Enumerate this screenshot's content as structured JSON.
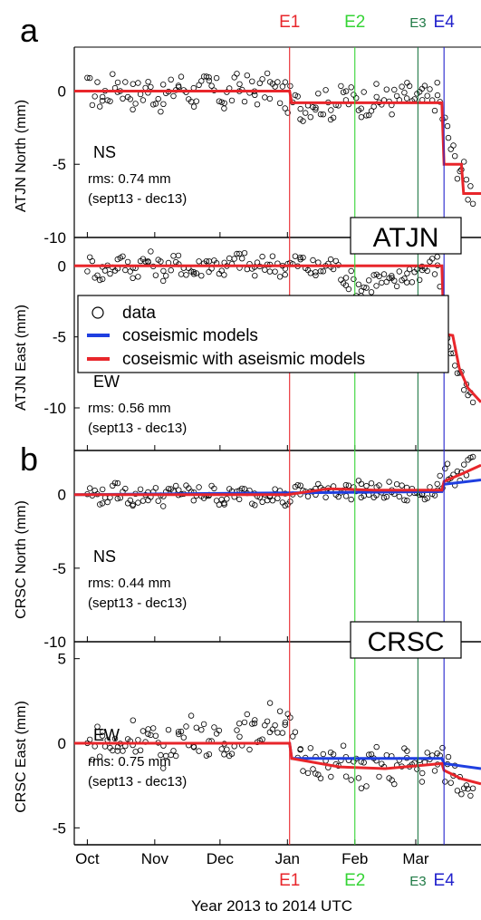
{
  "figure": {
    "xlabel": "Year 2013 to 2014 UTC",
    "x_ticks": [
      "Oct",
      "Nov",
      "Dec",
      "Jan",
      "Feb",
      "Mar"
    ],
    "events": [
      {
        "label": "E1",
        "date": "2014-01-02",
        "color": "#e8262b"
      },
      {
        "label": "E2",
        "date": "2014-02-01",
        "color": "#35d435"
      },
      {
        "label": "E3",
        "date": "2014-03-02",
        "color": "#1f7a45"
      },
      {
        "label": "E4",
        "date": "2014-03-14",
        "color": "#2222cc"
      }
    ],
    "colors": {
      "axis": "#000000",
      "data_marker": "#000000",
      "coseismic": "#1f3fe0",
      "aseismic": "#e8262b"
    },
    "legend": {
      "placement": "center-right of panel a-EW",
      "entries": [
        {
          "label": "data",
          "marker": "circle"
        },
        {
          "label": "coseismic models",
          "color": "#1f3fe0"
        },
        {
          "label": "coseismic with aseismic models",
          "color": "#e8262b"
        }
      ]
    }
  },
  "chart_data": [
    {
      "type": "scatter",
      "panel_letter": "a",
      "station_label": "ATJN",
      "ylabel": "ATJN North (mm)",
      "component": "NS",
      "rms": "rms: 0.74 mm",
      "period": "(sept13 - dec13)",
      "ylim": [
        -10,
        3
      ],
      "yticks": [
        0,
        -5,
        -10
      ],
      "xlim": [
        "2013-09-25",
        "2014-03-31"
      ],
      "series": [
        {
          "kind": "data",
          "noise": 0.74,
          "points": [
            [
              "2013-10-01",
              0.1
            ],
            [
              "2013-10-08",
              -0.4
            ],
            [
              "2013-10-15",
              0.6
            ],
            [
              "2013-10-22",
              -0.3
            ],
            [
              "2013-10-29",
              0.2
            ],
            [
              "2013-11-05",
              -0.6
            ],
            [
              "2013-11-12",
              0.5
            ],
            [
              "2013-11-19",
              -0.2
            ],
            [
              "2013-11-26",
              0.3
            ],
            [
              "2013-12-03",
              -0.5
            ],
            [
              "2013-12-10",
              0.4
            ],
            [
              "2013-12-17",
              -0.1
            ],
            [
              "2013-12-24",
              0.3
            ],
            [
              "2013-12-31",
              -0.4
            ],
            [
              "2014-01-07",
              -1.1
            ],
            [
              "2014-01-14",
              -0.6
            ],
            [
              "2014-01-21",
              -1.0
            ],
            [
              "2014-01-28",
              -0.4
            ],
            [
              "2014-02-04",
              -0.8
            ],
            [
              "2014-02-11",
              -0.5
            ],
            [
              "2014-02-18",
              -0.7
            ],
            [
              "2014-02-25",
              -0.3
            ],
            [
              "2014-03-04",
              -0.6
            ],
            [
              "2014-03-11",
              -0.3
            ],
            [
              "2014-03-16",
              -3.1
            ],
            [
              "2014-03-19",
              -4.8
            ],
            [
              "2014-03-22",
              -5.2
            ],
            [
              "2014-03-25",
              -6.6
            ],
            [
              "2014-03-28",
              -7.0
            ]
          ]
        },
        {
          "kind": "coseismic",
          "steps": [
            [
              "2014-03-14",
              -5.0
            ],
            [
              "2014-03-23",
              -7.0
            ]
          ]
        },
        {
          "kind": "aseismic",
          "line": [
            [
              "2013-09-25",
              0
            ],
            [
              "2014-01-02",
              0
            ],
            [
              "2014-01-03",
              -0.8
            ],
            [
              "2014-03-13",
              -0.8
            ],
            [
              "2014-03-14",
              -5.0
            ],
            [
              "2014-03-22",
              -5.0
            ],
            [
              "2014-03-23",
              -7.0
            ],
            [
              "2014-03-31",
              -7.0
            ]
          ]
        }
      ]
    },
    {
      "type": "scatter",
      "panel_letter": "",
      "station_label": "ATJN",
      "ylabel": "ATJN East (mm)",
      "component": "EW",
      "rms": "rms: 0.56 mm",
      "period": "(sept13 - dec13)",
      "ylim": [
        -13,
        2
      ],
      "yticks": [
        0,
        -5,
        -10
      ],
      "xlim": [
        "2013-09-25",
        "2014-03-31"
      ],
      "series": [
        {
          "kind": "data",
          "noise": 0.56,
          "points": [
            [
              "2013-10-01",
              0.2
            ],
            [
              "2013-10-08",
              -0.5
            ],
            [
              "2013-10-15",
              0.3
            ],
            [
              "2013-10-22",
              -0.2
            ],
            [
              "2013-10-29",
              0.4
            ],
            [
              "2013-11-05",
              -0.3
            ],
            [
              "2013-11-12",
              0.2
            ],
            [
              "2013-11-19",
              -0.4
            ],
            [
              "2013-11-26",
              0.3
            ],
            [
              "2013-12-03",
              -0.2
            ],
            [
              "2013-12-10",
              0.5
            ],
            [
              "2013-12-17",
              -0.3
            ],
            [
              "2013-12-24",
              0.2
            ],
            [
              "2013-12-31",
              -0.1
            ],
            [
              "2014-01-07",
              0.3
            ],
            [
              "2014-01-14",
              -0.4
            ],
            [
              "2014-01-21",
              0.2
            ],
            [
              "2014-01-28",
              -0.8
            ],
            [
              "2014-02-04",
              -1.6
            ],
            [
              "2014-02-11",
              -0.9
            ],
            [
              "2014-02-18",
              -1.3
            ],
            [
              "2014-02-25",
              -0.6
            ],
            [
              "2014-03-04",
              -0.2
            ],
            [
              "2014-03-11",
              0.1
            ],
            [
              "2014-03-16",
              -5.3
            ],
            [
              "2014-03-19",
              -6.8
            ],
            [
              "2014-03-22",
              -8.2
            ],
            [
              "2014-03-25",
              -9.1
            ],
            [
              "2014-03-28",
              -9.8
            ]
          ]
        },
        {
          "kind": "coseismic",
          "steps": [
            [
              "2014-03-14",
              -4.8
            ],
            [
              "2014-03-22",
              -8.5
            ]
          ]
        },
        {
          "kind": "aseismic",
          "line": [
            [
              "2013-09-25",
              0
            ],
            [
              "2014-03-13",
              0
            ],
            [
              "2014-03-14",
              -4.8
            ],
            [
              "2014-03-18",
              -4.9
            ],
            [
              "2014-03-21",
              -7.2
            ],
            [
              "2014-03-25",
              -8.6
            ],
            [
              "2014-03-31",
              -9.6
            ]
          ]
        }
      ]
    },
    {
      "type": "scatter",
      "panel_letter": "b",
      "station_label": "CRSC",
      "ylabel": "CRSC North (mm)",
      "component": "NS",
      "rms": "rms: 0.44 mm",
      "period": "(sept13 - dec13)",
      "ylim": [
        -10,
        3
      ],
      "yticks": [
        0,
        -5,
        -10
      ],
      "xlim": [
        "2013-09-25",
        "2014-03-31"
      ],
      "series": [
        {
          "kind": "data",
          "noise": 0.44,
          "points": [
            [
              "2013-10-01",
              0.2
            ],
            [
              "2013-10-08",
              -0.2
            ],
            [
              "2013-10-15",
              0.3
            ],
            [
              "2013-10-22",
              -0.3
            ],
            [
              "2013-10-29",
              0.1
            ],
            [
              "2013-11-05",
              -0.2
            ],
            [
              "2013-11-12",
              0.3
            ],
            [
              "2013-11-19",
              -0.1
            ],
            [
              "2013-11-26",
              0.2
            ],
            [
              "2013-12-03",
              -0.3
            ],
            [
              "2013-12-10",
              0.1
            ],
            [
              "2013-12-17",
              -0.2
            ],
            [
              "2013-12-24",
              0.3
            ],
            [
              "2013-12-31",
              -0.4
            ],
            [
              "2014-01-07",
              0.3
            ],
            [
              "2014-01-14",
              0.1
            ],
            [
              "2014-01-21",
              0.5
            ],
            [
              "2014-01-28",
              0.2
            ],
            [
              "2014-02-04",
              0.4
            ],
            [
              "2014-02-11",
              0.1
            ],
            [
              "2014-02-18",
              0.3
            ],
            [
              "2014-02-25",
              0.0
            ],
            [
              "2014-03-04",
              0.2
            ],
            [
              "2014-03-11",
              0.4
            ],
            [
              "2014-03-16",
              1.6
            ],
            [
              "2014-03-19",
              1.2
            ],
            [
              "2014-03-22",
              1.5
            ],
            [
              "2014-03-25",
              1.9
            ],
            [
              "2014-03-28",
              2.1
            ]
          ]
        },
        {
          "kind": "coseismic",
          "line": [
            [
              "2013-09-25",
              0
            ],
            [
              "2014-03-13",
              0.2
            ],
            [
              "2014-03-14",
              0.7
            ],
            [
              "2014-03-31",
              1.0
            ]
          ]
        },
        {
          "kind": "aseismic",
          "line": [
            [
              "2013-09-25",
              0
            ],
            [
              "2014-01-01",
              0
            ],
            [
              "2014-01-20",
              0.4
            ],
            [
              "2014-02-10",
              0.3
            ],
            [
              "2014-03-13",
              0.3
            ],
            [
              "2014-03-14",
              0.9
            ],
            [
              "2014-03-22",
              1.4
            ],
            [
              "2014-03-31",
              2.0
            ]
          ]
        }
      ]
    },
    {
      "type": "scatter",
      "panel_letter": "",
      "station_label": "CRSC",
      "ylabel": "CRSC East (mm)",
      "component": "EW",
      "rms": "rms: 0.75 mm",
      "period": "(sept13 - dec13)",
      "ylim": [
        -6,
        6
      ],
      "yticks": [
        5,
        0,
        -5
      ],
      "xlim": [
        "2013-09-25",
        "2014-03-31"
      ],
      "series": [
        {
          "kind": "data",
          "noise": 0.75,
          "points": [
            [
              "2013-10-01",
              -0.2
            ],
            [
              "2013-10-08",
              0.3
            ],
            [
              "2013-10-15",
              -0.4
            ],
            [
              "2013-10-22",
              0.6
            ],
            [
              "2013-10-29",
              0.2
            ],
            [
              "2013-11-05",
              -0.5
            ],
            [
              "2013-11-12",
              0.4
            ],
            [
              "2013-11-19",
              0.8
            ],
            [
              "2013-11-26",
              0.1
            ],
            [
              "2013-12-03",
              -0.3
            ],
            [
              "2013-12-10",
              1.0
            ],
            [
              "2013-12-17",
              0.5
            ],
            [
              "2013-12-24",
              1.4
            ],
            [
              "2013-12-31",
              1.6
            ],
            [
              "2014-01-07",
              -1.2
            ],
            [
              "2014-01-14",
              -0.8
            ],
            [
              "2014-01-21",
              -1.5
            ],
            [
              "2014-01-28",
              -1.0
            ],
            [
              "2014-02-04",
              -1.9
            ],
            [
              "2014-02-11",
              -1.2
            ],
            [
              "2014-02-18",
              -1.6
            ],
            [
              "2014-02-25",
              -1.1
            ],
            [
              "2014-03-04",
              -1.4
            ],
            [
              "2014-03-11",
              -1.0
            ],
            [
              "2014-03-16",
              -1.5
            ],
            [
              "2014-03-19",
              -1.8
            ],
            [
              "2014-03-22",
              -2.1
            ],
            [
              "2014-03-25",
              -2.2
            ],
            [
              "2014-03-28",
              -2.3
            ]
          ]
        },
        {
          "kind": "coseismic",
          "line": [
            [
              "2013-09-25",
              0
            ],
            [
              "2014-01-02",
              0
            ],
            [
              "2014-01-03",
              -0.9
            ],
            [
              "2014-03-13",
              -0.9
            ],
            [
              "2014-03-14",
              -1.2
            ],
            [
              "2014-03-31",
              -1.5
            ]
          ]
        },
        {
          "kind": "aseismic",
          "line": [
            [
              "2013-09-25",
              0
            ],
            [
              "2014-01-02",
              0
            ],
            [
              "2014-01-03",
              -0.9
            ],
            [
              "2014-01-25",
              -1.4
            ],
            [
              "2014-02-15",
              -1.5
            ],
            [
              "2014-03-13",
              -1.2
            ],
            [
              "2014-03-14",
              -1.6
            ],
            [
              "2014-03-22",
              -2.1
            ],
            [
              "2014-03-31",
              -2.4
            ]
          ]
        }
      ]
    }
  ]
}
